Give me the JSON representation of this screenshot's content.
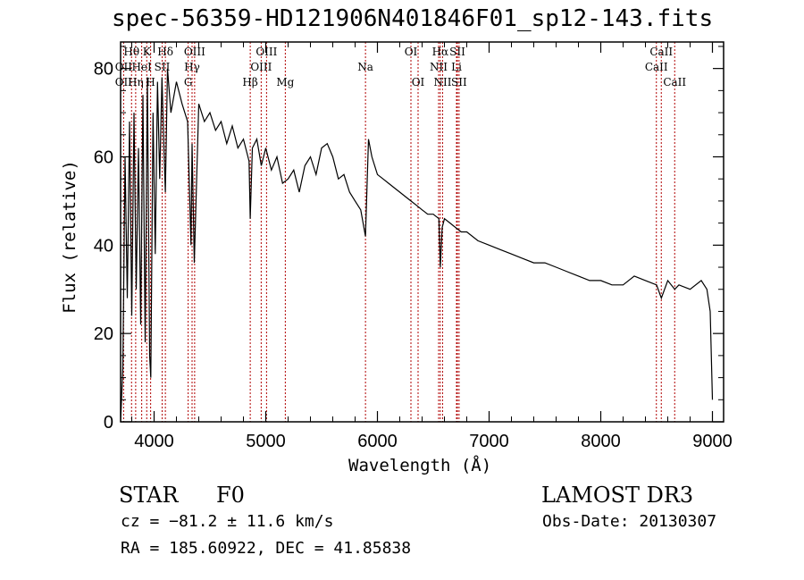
{
  "title": "spec-56359-HD121906N401846F01_sp12-143.fits",
  "info": {
    "class_label": "STAR",
    "subclass_label": "F0",
    "survey": "LAMOST DR3",
    "cz": "cz = −81.2 ± 11.6 km/s",
    "obs_date": "Obs-Date: 20130307",
    "radec": "RA = 185.60922, DEC =  41.85838"
  },
  "chart_data": {
    "type": "line",
    "title": "spec-56359-HD121906N401846F01_sp12-143.fits",
    "xlabel": "Wavelength (Å)",
    "ylabel": "Flux (relative)",
    "xlim": [
      3700,
      9100
    ],
    "ylim": [
      0,
      86
    ],
    "x_ticks": [
      4000,
      5000,
      6000,
      7000,
      8000,
      9000
    ],
    "y_ticks": [
      0,
      20,
      40,
      60,
      80
    ],
    "grid": false,
    "series": [
      {
        "name": "flux",
        "x": [
          3700,
          3720,
          3740,
          3760,
          3780,
          3800,
          3820,
          3840,
          3860,
          3880,
          3900,
          3920,
          3940,
          3960,
          3970,
          3990,
          4010,
          4030,
          4050,
          4070,
          4090,
          4101,
          4120,
          4150,
          4200,
          4250,
          4300,
          4330,
          4340,
          4360,
          4400,
          4450,
          4500,
          4550,
          4600,
          4650,
          4700,
          4750,
          4800,
          4850,
          4861,
          4880,
          4920,
          4960,
          5000,
          5050,
          5100,
          5150,
          5200,
          5250,
          5300,
          5350,
          5400,
          5450,
          5500,
          5550,
          5600,
          5650,
          5700,
          5750,
          5800,
          5850,
          5893,
          5920,
          5950,
          6000,
          6050,
          6100,
          6150,
          6200,
          6250,
          6300,
          6350,
          6400,
          6450,
          6500,
          6550,
          6563,
          6580,
          6600,
          6650,
          6700,
          6750,
          6800,
          6900,
          7000,
          7100,
          7200,
          7300,
          7400,
          7500,
          7600,
          7700,
          7800,
          7900,
          8000,
          8100,
          8200,
          8300,
          8400,
          8500,
          8542,
          8600,
          8662,
          8700,
          8800,
          8900,
          8950,
          8980,
          9000
        ],
        "y": [
          0,
          12,
          60,
          28,
          68,
          24,
          70,
          30,
          62,
          22,
          74,
          18,
          78,
          15,
          10,
          70,
          38,
          77,
          55,
          78,
          60,
          52,
          80,
          70,
          77,
          72,
          68,
          40,
          63,
          36,
          72,
          68,
          70,
          66,
          68,
          63,
          67,
          62,
          64,
          59,
          46,
          62,
          64,
          58,
          62,
          57,
          60,
          54,
          55,
          57,
          52,
          58,
          60,
          56,
          62,
          63,
          60,
          55,
          56,
          52,
          50,
          48,
          42,
          64,
          60,
          56,
          55,
          54,
          53,
          52,
          51,
          50,
          49,
          48,
          47,
          47,
          46,
          35,
          44,
          46,
          45,
          44,
          43,
          43,
          41,
          40,
          39,
          38,
          37,
          36,
          36,
          35,
          34,
          33,
          32,
          32,
          31,
          31,
          33,
          32,
          31,
          28,
          32,
          30,
          31,
          30,
          32,
          30,
          25,
          5
        ]
      }
    ],
    "line_markers": [
      {
        "label": "Hθ",
        "wave": 3798,
        "row": 0
      },
      {
        "label": "OII",
        "wave": 3727,
        "row": 1
      },
      {
        "label": "OII",
        "wave": 3727,
        "row": 2
      },
      {
        "label": "K",
        "wave": 3934,
        "row": 0
      },
      {
        "label": "HeI",
        "wave": 3889,
        "row": 1
      },
      {
        "label": "Hη",
        "wave": 3835,
        "row": 2
      },
      {
        "label": "H",
        "wave": 3969,
        "row": 2
      },
      {
        "label": "Hδ",
        "wave": 4101,
        "row": 0
      },
      {
        "label": "SII",
        "wave": 4072,
        "row": 1
      },
      {
        "label": "OIII",
        "wave": 4363,
        "row": 0
      },
      {
        "label": "Hγ",
        "wave": 4340,
        "row": 1
      },
      {
        "label": "G",
        "wave": 4305,
        "row": 2
      },
      {
        "label": "Hβ",
        "wave": 4861,
        "row": 2
      },
      {
        "label": "OIII",
        "wave": 5007,
        "row": 0
      },
      {
        "label": "OIII",
        "wave": 4959,
        "row": 1
      },
      {
        "label": "Mg",
        "wave": 5175,
        "row": 2
      },
      {
        "label": "Na",
        "wave": 5893,
        "row": 1
      },
      {
        "label": "OI",
        "wave": 6300,
        "row": 0
      },
      {
        "label": "OI",
        "wave": 6364,
        "row": 2
      },
      {
        "label": "Hα",
        "wave": 6563,
        "row": 0
      },
      {
        "label": "NII",
        "wave": 6548,
        "row": 1
      },
      {
        "label": "NII",
        "wave": 6584,
        "row": 2
      },
      {
        "label": "SII",
        "wave": 6716,
        "row": 0
      },
      {
        "label": "Li",
        "wave": 6708,
        "row": 1
      },
      {
        "label": "SII",
        "wave": 6731,
        "row": 2
      },
      {
        "label": "CaII",
        "wave": 8542,
        "row": 0
      },
      {
        "label": "CaII",
        "wave": 8498,
        "row": 1
      },
      {
        "label": "CaII",
        "wave": 8662,
        "row": 2
      }
    ]
  }
}
